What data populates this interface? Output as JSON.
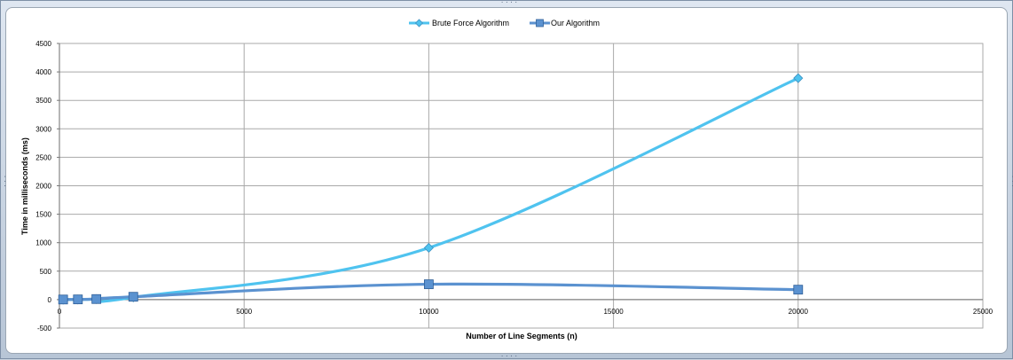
{
  "chart_data": {
    "type": "scatter",
    "xlabel": "Number of Line Segments (n)",
    "ylabel": "Time in milliseconds (ms)",
    "xlim": [
      0,
      25000
    ],
    "ylim": [
      -500,
      4500
    ],
    "x_ticks": [
      0,
      5000,
      10000,
      15000,
      20000,
      25000
    ],
    "y_ticks": [
      -500,
      0,
      500,
      1000,
      1500,
      2000,
      2500,
      3000,
      3500,
      4000,
      4500
    ],
    "grid": true,
    "smooth_lines": true,
    "legend_position": "top-center",
    "series": [
      {
        "name": "Brute Force Algorithm",
        "marker": "diamond",
        "color": "#4fc3ef",
        "x": [
          100,
          500,
          1000,
          2000,
          10000,
          20000
        ],
        "y": [
          0,
          1,
          10,
          40,
          910,
          3890
        ]
      },
      {
        "name": "Our Algorithm",
        "marker": "square",
        "color": "#5b92d0",
        "x": [
          100,
          500,
          1000,
          2000,
          10000,
          20000
        ],
        "y": [
          2,
          4,
          10,
          50,
          270,
          175
        ]
      }
    ]
  }
}
